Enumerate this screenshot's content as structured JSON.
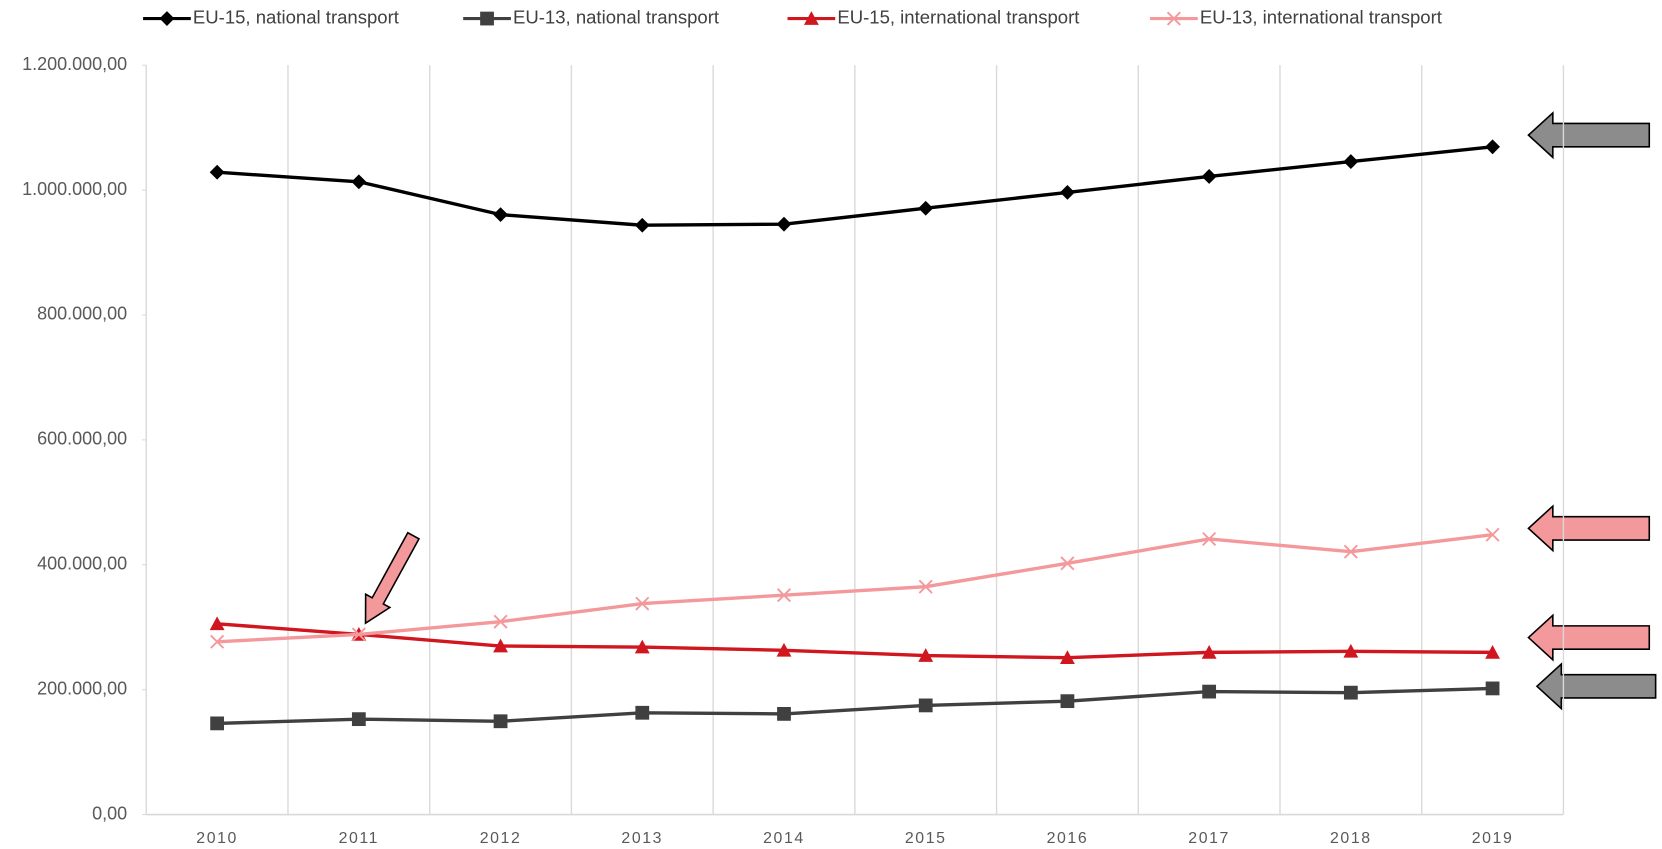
{
  "chart_data": {
    "type": "line",
    "categories": [
      "2010",
      "2011",
      "2012",
      "2013",
      "2014",
      "2015",
      "2016",
      "2017",
      "2018",
      "2019"
    ],
    "series": [
      {
        "name": "EU-15, national transport",
        "color": "#000000",
        "marker": "diamond",
        "values": [
          1028600,
          1013300,
          960700,
          943700,
          945400,
          970900,
          996300,
          1021800,
          1045600,
          1069300
        ]
      },
      {
        "name": "EU-13, national transport",
        "color": "#404040",
        "marker": "square",
        "values": [
          146000,
          152800,
          149400,
          163000,
          161200,
          174800,
          181600,
          196900,
          195200,
          202000
        ]
      },
      {
        "name": "EU-15, international transport",
        "color": "#d0161e",
        "marker": "triangle",
        "values": [
          305500,
          288500,
          269900,
          268200,
          263100,
          254600,
          251200,
          259700,
          261400,
          259700
        ]
      },
      {
        "name": "EU-13, international transport",
        "color": "#f4999b",
        "marker": "x",
        "values": [
          276700,
          288500,
          308900,
          337800,
          351300,
          364900,
          402300,
          441300,
          420900,
          448100
        ]
      }
    ],
    "ylim": [
      0,
      1200000
    ],
    "yticks": [
      {
        "value": 0,
        "label": "0,00"
      },
      {
        "value": 200000,
        "label": "200.000,00"
      },
      {
        "value": 400000,
        "label": "400.000,00"
      },
      {
        "value": 600000,
        "label": "600.000,00"
      },
      {
        "value": 800000,
        "label": "800.000,00"
      },
      {
        "value": 1000000,
        "label": "1.000.000,00"
      },
      {
        "value": 1200000,
        "label": "1.200.000,00"
      }
    ],
    "legend": "top"
  }
}
